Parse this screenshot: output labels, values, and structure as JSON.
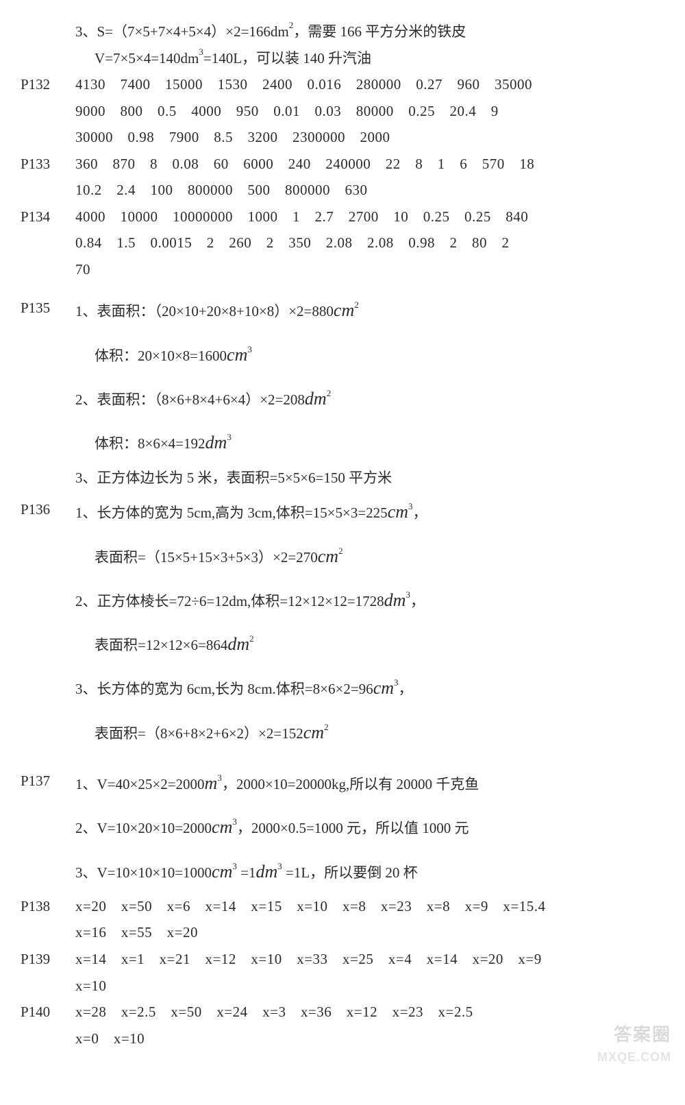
{
  "colors": {
    "text": "#2b2b2b",
    "bg": "#ffffff",
    "watermark": "#bdbdbd"
  },
  "typography": {
    "body_pt": 16,
    "unit_pt": 20,
    "sup_pt": 10,
    "line_height": 1.55
  },
  "watermark": {
    "line1": "答案圈",
    "line2": "MXQE.COM"
  },
  "pre": {
    "l1a": "3、S=（7×5+7×4+5×4）×2=166dm",
    "l1sup": "2",
    "l1b": "，需要 166 平方分米的铁皮",
    "l2a": "V=7×5×4=140dm",
    "l2sup": "3",
    "l2b": "=140L，可以装 140 升汽油"
  },
  "p132": {
    "label": "P132",
    "r1": "4130　7400　15000　1530　2400　0.016　280000　0.27　960　35000",
    "r2": "9000　800　0.5　4000　950　0.01　0.03　80000　0.25　20.4　9",
    "r3": "30000　0.98　7900　8.5　3200　2300000　2000"
  },
  "p133": {
    "label": "P133",
    "r1": "360　870　8　0.08　60　6000　240　240000　22　8　1　6　570　18",
    "r2": "10.2　2.4　100　800000　500　800000　630"
  },
  "p134": {
    "label": "P134",
    "r1": "4000　10000　10000000　1000　1　2.7　2700　10　0.25　0.25　840",
    "r2": "0.84　1.5　0.0015　2　260　2　350　2.08　2.08　0.98　2　80　2",
    "r3": "70"
  },
  "p135": {
    "label": "P135",
    "q1a": "1、表面积：（20×10+20×8+10×8）×2=880",
    "q1b": "体积：20×10×8=1600",
    "q2a": "2、表面积：（8×6+8×4+6×4）×2=208",
    "q2b": "体积：8×6×4=192",
    "q3": "3、正方体边长为 5 米，表面积=5×5×6=150 平方米"
  },
  "p136": {
    "label": "P136",
    "q1a": "1、长方体的宽为 5cm,高为 3cm,体积=15×5×3=225",
    "q1b": "表面积=（15×5+15×3+5×3）×2=270",
    "q2a": "2、正方体棱长=72÷6=12dm,体积=12×12×12=1728",
    "q2b": "表面积=12×12×6=864",
    "q3a": "3、长方体的宽为 6cm,长为 8cm.体积=8×6×2=96",
    "q3b": "表面积=（8×6+8×2+6×2）×2=152"
  },
  "p137": {
    "label": "P137",
    "q1a": "1、V=40×25×2=2000",
    "q1b": "，2000×10=20000kg,所以有 20000 千克鱼",
    "q2a": "2、V=10×20×10=2000",
    "q2b": "，2000×0.5=1000 元，所以值 1000 元",
    "q3a": "3、V=10×10×10=1000",
    "q3b": "=1",
    "q3c": "=1L，所以要倒 20 杯"
  },
  "p138": {
    "label": "P138",
    "r1": "x=20　x=50　x=6　x=14　x=15　x=10　x=8　x=23　x=8　x=9　x=15.4",
    "r2": "x=16　x=55　x=20"
  },
  "p139": {
    "label": "P139",
    "r1": "x=14　x=1　x=21　x=12　x=10　x=33　x=25　x=4　x=14　x=20　x=9",
    "r2": "x=10"
  },
  "p140": {
    "label": "P140",
    "r1": "x=28　x=2.5　x=50　x=24　x=3　x=36　x=12　x=23　x=2.5",
    "r2": "x=0　x=10"
  },
  "units": {
    "cm": "cm",
    "dm": "dm",
    "m": "m",
    "e2": "2",
    "e3": "3"
  }
}
